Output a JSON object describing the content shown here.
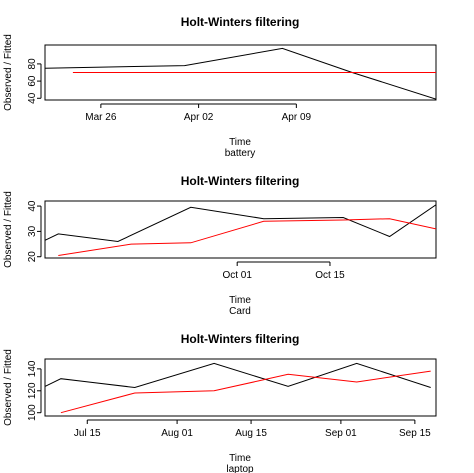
{
  "chart_data": [
    {
      "type": "line",
      "title": "Holt-Winters filtering",
      "xlabel": "Time",
      "sublabel": "battery",
      "ylabel": "Observed / Fitted",
      "xlim": [
        "2015-03-22",
        "2015-04-19"
      ],
      "ylim": [
        38,
        102
      ],
      "yticks": [
        40,
        60,
        80
      ],
      "xticks": [
        {
          "date": "2015-03-26",
          "label": "Mar 26"
        },
        {
          "date": "2015-04-02",
          "label": "Apr 02"
        },
        {
          "date": "2015-04-09",
          "label": "Apr 09"
        }
      ],
      "series": [
        {
          "role": "observed",
          "color": "#000000",
          "x": [
            "2015-03-22",
            "2015-04-01",
            "2015-04-08",
            "2015-04-13",
            "2015-04-19"
          ],
          "y": [
            75,
            78,
            98,
            70,
            39
          ]
        },
        {
          "role": "fitted",
          "color": "#ff0000",
          "x": [
            "2015-03-24",
            "2015-04-19"
          ],
          "y": [
            70,
            70
          ]
        }
      ]
    },
    {
      "type": "line",
      "title": "Holt-Winters filtering",
      "xlabel": "Time",
      "sublabel": "Card",
      "ylabel": "Observed / Fitted",
      "xlim": [
        "2015-09-02",
        "2015-10-31"
      ],
      "ylim": [
        19.5,
        42
      ],
      "yticks": [
        20,
        30,
        40
      ],
      "xticks": [
        {
          "date": "2015-10-01",
          "label": "Oct 01"
        },
        {
          "date": "2015-10-15",
          "label": "Oct 15"
        }
      ],
      "series": [
        {
          "role": "observed",
          "color": "#000000",
          "x": [
            "2015-09-02",
            "2015-09-04",
            "2015-09-13",
            "2015-09-24",
            "2015-10-05",
            "2015-10-17",
            "2015-10-24",
            "2015-10-31"
          ],
          "y": [
            26.5,
            29,
            26,
            39.5,
            35,
            35.5,
            28,
            40.5
          ]
        },
        {
          "role": "fitted",
          "color": "#ff0000",
          "x": [
            "2015-09-04",
            "2015-09-15",
            "2015-09-24",
            "2015-10-05",
            "2015-10-17",
            "2015-10-24",
            "2015-10-31"
          ],
          "y": [
            20.5,
            25,
            25.5,
            34,
            34.5,
            35,
            31
          ]
        }
      ]
    },
    {
      "type": "line",
      "title": "Holt-Winters filtering",
      "xlabel": "Time",
      "sublabel": "laptop",
      "ylabel": "Observed / Fitted",
      "xlim": [
        "2015-07-07",
        "2015-09-19"
      ],
      "ylim": [
        97,
        149
      ],
      "yticks": [
        100,
        120,
        140
      ],
      "xticks": [
        {
          "date": "2015-07-15",
          "label": "Jul 15"
        },
        {
          "date": "2015-08-01",
          "label": "Aug 01"
        },
        {
          "date": "2015-08-15",
          "label": "Aug 15"
        },
        {
          "date": "2015-09-01",
          "label": "Sep 01"
        },
        {
          "date": "2015-09-15",
          "label": "Sep 15"
        }
      ],
      "series": [
        {
          "role": "observed",
          "color": "#000000",
          "x": [
            "2015-07-07",
            "2015-07-10",
            "2015-07-24",
            "2015-08-08",
            "2015-08-22",
            "2015-09-04",
            "2015-09-18"
          ],
          "y": [
            124,
            131,
            123,
            145,
            124,
            145,
            123
          ]
        },
        {
          "role": "fitted",
          "color": "#ff0000",
          "x": [
            "2015-07-10",
            "2015-07-24",
            "2015-08-08",
            "2015-08-22",
            "2015-09-04",
            "2015-09-18"
          ],
          "y": [
            100,
            118,
            120,
            135,
            128,
            138
          ]
        }
      ]
    }
  ]
}
